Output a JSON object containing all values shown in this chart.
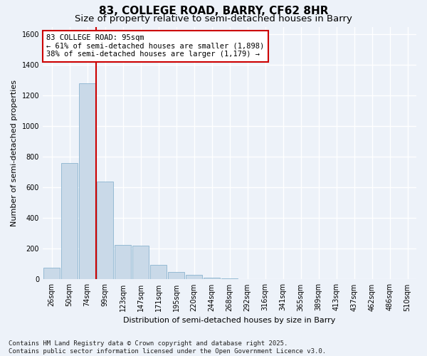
{
  "title_line1": "83, COLLEGE ROAD, BARRY, CF62 8HR",
  "title_line2": "Size of property relative to semi-detached houses in Barry",
  "xlabel": "Distribution of semi-detached houses by size in Barry",
  "ylabel": "Number of semi-detached properties",
  "categories": [
    "26sqm",
    "50sqm",
    "74sqm",
    "99sqm",
    "123sqm",
    "147sqm",
    "171sqm",
    "195sqm",
    "220sqm",
    "244sqm",
    "268sqm",
    "292sqm",
    "316sqm",
    "341sqm",
    "365sqm",
    "389sqm",
    "413sqm",
    "437sqm",
    "462sqm",
    "486sqm",
    "510sqm"
  ],
  "values": [
    75,
    760,
    1280,
    640,
    225,
    220,
    95,
    50,
    30,
    10,
    5,
    1,
    0,
    0,
    0,
    0,
    0,
    0,
    0,
    0,
    0
  ],
  "bar_color": "#c9d9e8",
  "bar_edge_color": "#7aaac8",
  "vline_x": 2.5,
  "vline_color": "#cc0000",
  "annotation_text": "83 COLLEGE ROAD: 95sqm\n← 61% of semi-detached houses are smaller (1,898)\n38% of semi-detached houses are larger (1,179) →",
  "annotation_box_color": "#ffffff",
  "annotation_box_edge": "#cc0000",
  "ylim": [
    0,
    1650
  ],
  "yticks": [
    0,
    200,
    400,
    600,
    800,
    1000,
    1200,
    1400,
    1600
  ],
  "footnote": "Contains HM Land Registry data © Crown copyright and database right 2025.\nContains public sector information licensed under the Open Government Licence v3.0.",
  "background_color": "#edf2f9",
  "grid_color": "#ffffff",
  "title_fontsize": 11,
  "subtitle_fontsize": 9.5,
  "axis_label_fontsize": 8,
  "tick_fontsize": 7,
  "annotation_fontsize": 7.5,
  "footnote_fontsize": 6.5
}
